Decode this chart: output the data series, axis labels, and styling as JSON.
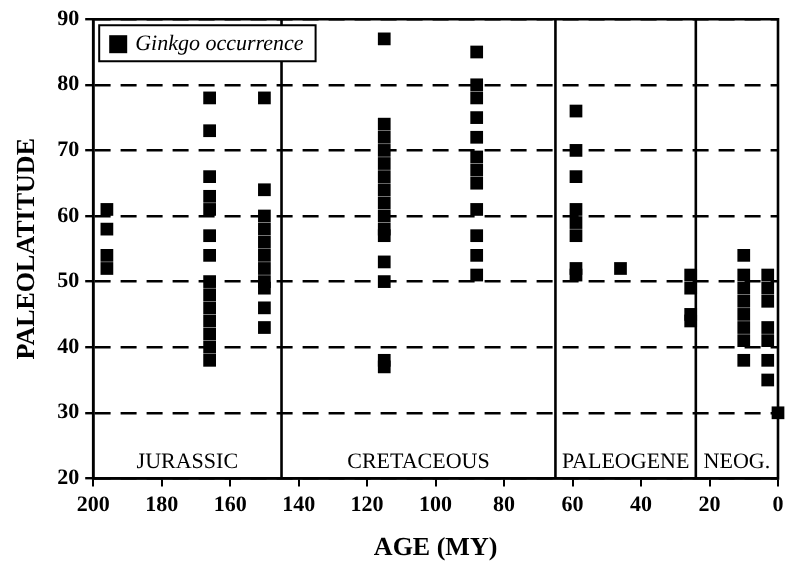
{
  "chart_data": {
    "type": "scatter",
    "xlabel": "AGE (MY)",
    "ylabel": "PALEOLATITUDE",
    "series": [
      {
        "name": "Ginkgo occurrence",
        "color": "#000000",
        "x": [
          196,
          196,
          196,
          196,
          166,
          166,
          166,
          166,
          166,
          166,
          166,
          166,
          166,
          166,
          166,
          166,
          166,
          166,
          150,
          150,
          150,
          150,
          150,
          150,
          150,
          150,
          150,
          150,
          150,
          115,
          115,
          115,
          115,
          115,
          115,
          115,
          115,
          115,
          115,
          115,
          115,
          115,
          115,
          115,
          88,
          88,
          88,
          88,
          88,
          88,
          88,
          88,
          88,
          88,
          88,
          88,
          59,
          59,
          59,
          59,
          59,
          59,
          59,
          59,
          46,
          25.5,
          25.5,
          25.5,
          25.5,
          10,
          10,
          10,
          10,
          10,
          10,
          10,
          10,
          3,
          3,
          3,
          3,
          3,
          3,
          3,
          0
        ],
        "values": [
          61,
          58,
          54,
          52,
          78,
          73,
          66,
          63,
          61,
          57,
          54,
          50,
          48,
          46,
          44,
          42,
          40,
          38,
          78,
          64,
          60,
          58,
          56,
          54,
          52,
          50,
          49,
          46,
          43,
          87,
          74,
          72,
          70,
          68,
          66,
          64,
          62,
          60,
          58,
          57,
          53,
          50,
          38,
          37,
          85,
          80,
          78,
          75,
          72,
          69,
          67,
          65,
          61,
          57,
          54,
          51,
          76,
          70,
          66,
          61,
          59,
          57,
          52,
          51,
          52,
          51,
          49,
          45,
          44,
          54,
          51,
          49,
          47,
          45,
          43,
          41,
          38,
          51,
          49,
          47,
          43,
          41,
          38,
          35,
          30
        ]
      }
    ],
    "xlim": [
      200,
      0
    ],
    "xticks": [
      200,
      180,
      160,
      140,
      120,
      100,
      80,
      60,
      40,
      20,
      0
    ],
    "ylim": [
      20,
      90
    ],
    "yticks": [
      20,
      30,
      40,
      50,
      60,
      70,
      80,
      90
    ],
    "grid": "y",
    "legend": "top left",
    "marker": "square",
    "ref_lines": [
      {
        "axis": "x",
        "value": 145,
        "color": "#000000"
      },
      {
        "axis": "x",
        "value": 65,
        "color": "#000000"
      },
      {
        "axis": "x",
        "value": 24,
        "color": "#000000"
      }
    ],
    "annotations": [
      "JURASSIC",
      "CRETACEOUS",
      "PALEOGENE",
      "NEOG."
    ]
  }
}
